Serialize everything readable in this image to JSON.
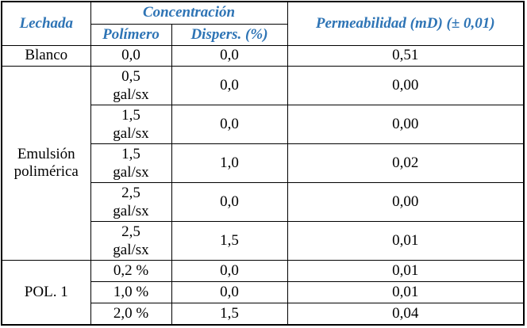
{
  "table": {
    "header": {
      "lechada": "Lechada",
      "concentracion": "Concentración",
      "polimero": "Polímero",
      "dispers": "Dispers. (%)",
      "permeabilidad": "Permeabilidad (mD) (± 0,01)"
    },
    "rows": [
      {
        "lechada": "Blanco",
        "polimero_line1": "0,0",
        "dispers": "0,0",
        "perm": "0,51"
      },
      {
        "lechada": "Emulsión polimérica",
        "polimero_line1": "0,5",
        "polimero_line2": "gal/sx",
        "dispers": "0,0",
        "perm": "0,00"
      },
      {
        "polimero_line1": "1,5",
        "polimero_line2": "gal/sx",
        "dispers": "0,0",
        "perm": "0,00"
      },
      {
        "polimero_line1": "1,5",
        "polimero_line2": "gal/sx",
        "dispers": "1,0",
        "perm": "0,02"
      },
      {
        "polimero_line1": "2,5",
        "polimero_line2": "gal/sx",
        "dispers": "0,0",
        "perm": "0,00"
      },
      {
        "polimero_line1": "2,5",
        "polimero_line2": "gal/sx",
        "dispers": "1,5",
        "perm": "0,01"
      },
      {
        "lechada": "POL. 1",
        "polimero_line1": "0,2 %",
        "dispers": "0,0",
        "perm": "0,01"
      },
      {
        "polimero_line1": "1,0 %",
        "dispers": "0,0",
        "perm": "0,01"
      },
      {
        "polimero_line1": "2,0 %",
        "dispers": "1,5",
        "perm": "0,04"
      }
    ]
  },
  "colors": {
    "header_text": "#2E74B5",
    "body_text": "#000000",
    "border": "#000000",
    "background": "#FFFFFF"
  },
  "chart_data": {
    "type": "table",
    "columns": [
      "Lechada",
      "Polímero",
      "Dispers. (%)",
      "Permeabilidad (mD) (± 0,01)"
    ],
    "rows": [
      [
        "Blanco",
        "0,0",
        "0,0",
        "0,51"
      ],
      [
        "Emulsión polimérica",
        "0,5 gal/sx",
        "0,0",
        "0,00"
      ],
      [
        "Emulsión polimérica",
        "1,5 gal/sx",
        "0,0",
        "0,00"
      ],
      [
        "Emulsión polimérica",
        "1,5 gal/sx",
        "1,0",
        "0,02"
      ],
      [
        "Emulsión polimérica",
        "2,5 gal/sx",
        "0,0",
        "0,00"
      ],
      [
        "Emulsión polimérica",
        "2,5 gal/sx",
        "1,5",
        "0,01"
      ],
      [
        "POL. 1",
        "0,2 %",
        "0,0",
        "0,01"
      ],
      [
        "POL. 1",
        "1,0 %",
        "0,0",
        "0,01"
      ],
      [
        "POL. 1",
        "2,0 %",
        "1,5",
        "0,04"
      ]
    ]
  }
}
